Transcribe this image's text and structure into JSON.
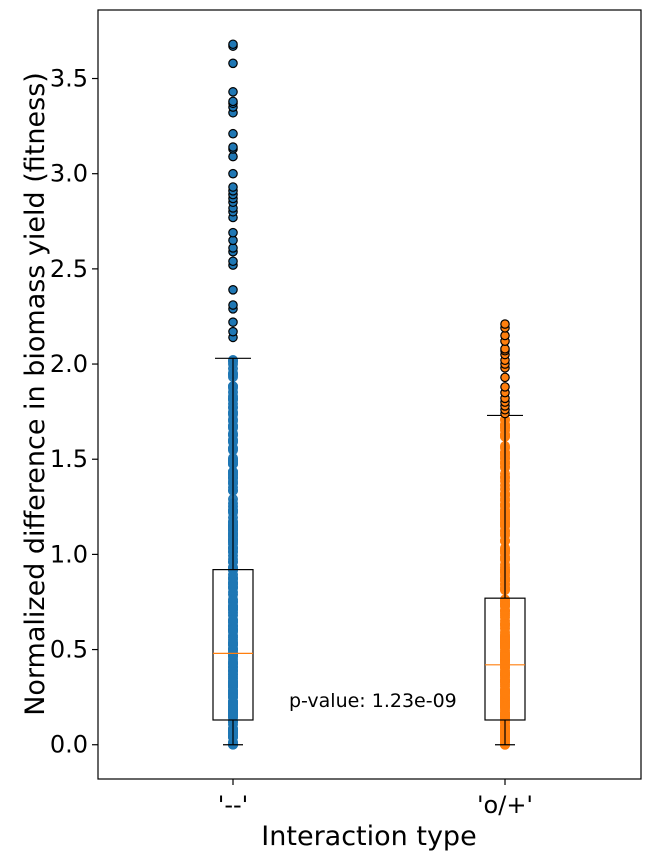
{
  "chart_data": {
    "type": "box",
    "xlabel": "Interaction type",
    "ylabel": "Normalized difference in biomass yield (fitness)",
    "ylim": [
      -0.18,
      3.86
    ],
    "yticks": [
      "0.0",
      "0.5",
      "1.0",
      "1.5",
      "2.0",
      "2.5",
      "3.0",
      "3.5"
    ],
    "categories": [
      "'--'",
      "'o/+'"
    ],
    "series": [
      {
        "category": "'--'",
        "color": "#1f77b4",
        "median": 0.48,
        "q1": 0.13,
        "q3": 0.92,
        "whisker_low": 0.0,
        "whisker_high": 2.03,
        "scatter_min": 0.0,
        "scatter_max": 2.03,
        "outliers": [
          2.14,
          2.17,
          2.22,
          2.29,
          2.31,
          2.39,
          2.52,
          2.54,
          2.59,
          2.61,
          2.65,
          2.69,
          2.77,
          2.8,
          2.82,
          2.85,
          2.87,
          2.89,
          2.91,
          2.93,
          3.0,
          3.09,
          3.13,
          3.14,
          3.21,
          3.32,
          3.35,
          3.37,
          3.38,
          3.43,
          3.58,
          3.67,
          3.68
        ]
      },
      {
        "category": "'o/+'",
        "color": "#ff7f0e",
        "median": 0.42,
        "q1": 0.13,
        "q3": 0.77,
        "whisker_low": 0.0,
        "whisker_high": 1.73,
        "scatter_min": 0.0,
        "scatter_max": 1.73,
        "outliers": [
          1.74,
          1.76,
          1.78,
          1.8,
          1.82,
          1.85,
          1.88,
          1.93,
          1.98,
          2.0,
          2.02,
          2.05,
          2.07,
          2.08,
          2.12,
          2.15,
          2.19,
          2.21
        ]
      }
    ],
    "annotations": [
      {
        "text": "p-value: 1.23e-09"
      }
    ]
  }
}
